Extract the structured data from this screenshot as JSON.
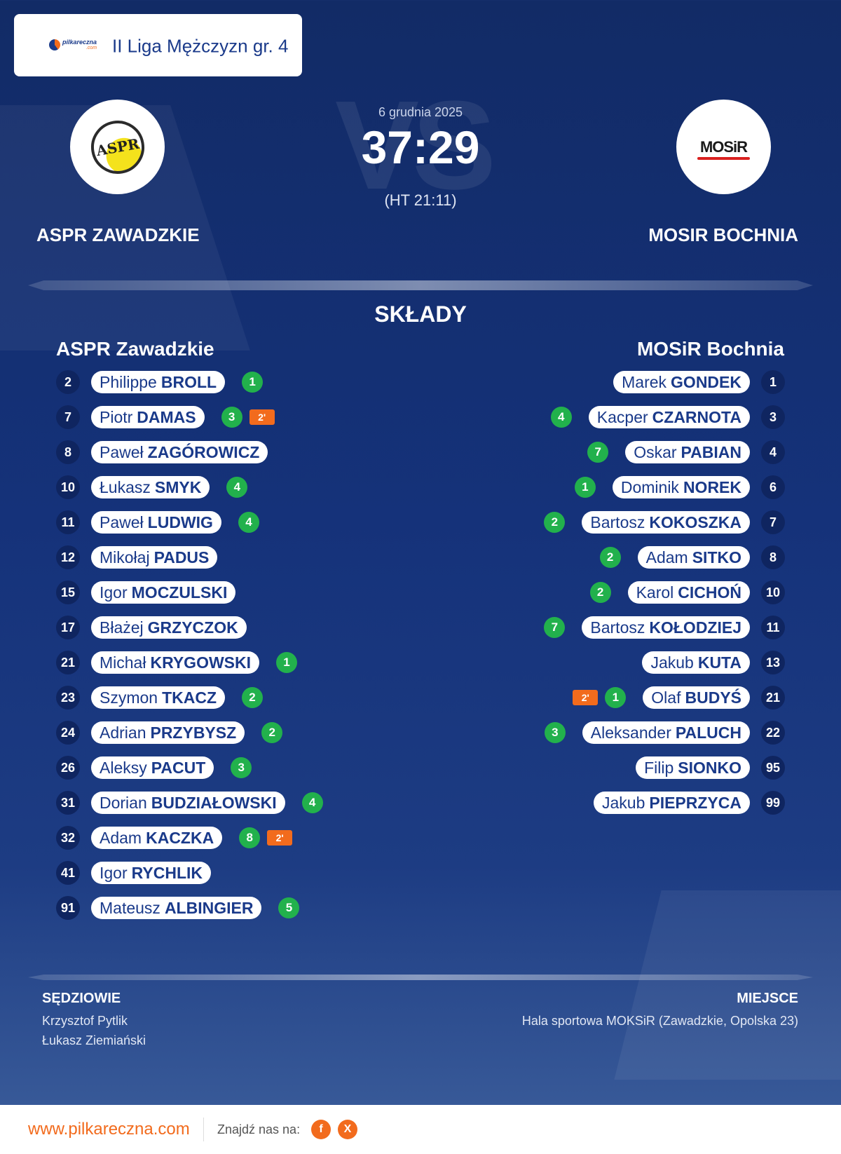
{
  "header": {
    "league_logo_text": "pilkareczna",
    "league_logo_sub": ".com",
    "league_name": "II Liga Mężczyzn gr. 4"
  },
  "match": {
    "date": "6 grudnia 2025",
    "score": "37:29",
    "halftime": "(HT 21:11)",
    "watermark": "VS"
  },
  "home_team": {
    "name": "ASPR ZAWADZKIE",
    "logo_text": "ASPR",
    "lineup_title": "ASPR Zawadzkie"
  },
  "away_team": {
    "name": "MOSIR BOCHNIA",
    "logo_text": "MOSiR",
    "lineup_title": "MOSiR Bochnia"
  },
  "section_title": "SKŁADY",
  "home_players": [
    {
      "number": "2",
      "first": "Philippe",
      "last": "BROLL",
      "goals": "1",
      "penalty": ""
    },
    {
      "number": "7",
      "first": "Piotr",
      "last": "DAMAS",
      "goals": "3",
      "penalty": "2'"
    },
    {
      "number": "8",
      "first": "Paweł",
      "last": "ZAGÓROWICZ",
      "goals": "",
      "penalty": ""
    },
    {
      "number": "10",
      "first": "Łukasz",
      "last": "SMYK",
      "goals": "4",
      "penalty": ""
    },
    {
      "number": "11",
      "first": "Paweł",
      "last": "LUDWIG",
      "goals": "4",
      "penalty": ""
    },
    {
      "number": "12",
      "first": "Mikołaj",
      "last": "PADUS",
      "goals": "",
      "penalty": ""
    },
    {
      "number": "15",
      "first": "Igor",
      "last": "MOCZULSKI",
      "goals": "",
      "penalty": ""
    },
    {
      "number": "17",
      "first": "Błażej",
      "last": "GRZYCZOK",
      "goals": "",
      "penalty": ""
    },
    {
      "number": "21",
      "first": "Michał",
      "last": "KRYGOWSKI",
      "goals": "1",
      "penalty": ""
    },
    {
      "number": "23",
      "first": "Szymon",
      "last": "TKACZ",
      "goals": "2",
      "penalty": ""
    },
    {
      "number": "24",
      "first": "Adrian",
      "last": "PRZYBYSZ",
      "goals": "2",
      "penalty": ""
    },
    {
      "number": "26",
      "first": "Aleksy",
      "last": "PACUT",
      "goals": "3",
      "penalty": ""
    },
    {
      "number": "31",
      "first": "Dorian",
      "last": "BUDZIAŁOWSKI",
      "goals": "4",
      "penalty": ""
    },
    {
      "number": "32",
      "first": "Adam",
      "last": "KACZKA",
      "goals": "8",
      "penalty": "2'"
    },
    {
      "number": "41",
      "first": "Igor",
      "last": "RYCHLIK",
      "goals": "",
      "penalty": ""
    },
    {
      "number": "91",
      "first": "Mateusz",
      "last": "ALBINGIER",
      "goals": "5",
      "penalty": ""
    }
  ],
  "away_players": [
    {
      "number": "1",
      "first": "Marek",
      "last": "GONDEK",
      "goals": "",
      "penalty": ""
    },
    {
      "number": "3",
      "first": "Kacper",
      "last": "CZARNOTA",
      "goals": "4",
      "penalty": ""
    },
    {
      "number": "4",
      "first": "Oskar",
      "last": "PABIAN",
      "goals": "7",
      "penalty": ""
    },
    {
      "number": "6",
      "first": "Dominik",
      "last": "NOREK",
      "goals": "1",
      "penalty": ""
    },
    {
      "number": "7",
      "first": "Bartosz",
      "last": "KOKOSZKA",
      "goals": "2",
      "penalty": ""
    },
    {
      "number": "8",
      "first": "Adam",
      "last": "SITKO",
      "goals": "2",
      "penalty": ""
    },
    {
      "number": "10",
      "first": "Karol",
      "last": "CICHOŃ",
      "goals": "2",
      "penalty": ""
    },
    {
      "number": "11",
      "first": "Bartosz",
      "last": "KOŁODZIEJ",
      "goals": "7",
      "penalty": ""
    },
    {
      "number": "13",
      "first": "Jakub",
      "last": "KUTA",
      "goals": "",
      "penalty": ""
    },
    {
      "number": "21",
      "first": "Olaf",
      "last": "BUDYŚ",
      "goals": "1",
      "penalty": "2'"
    },
    {
      "number": "22",
      "first": "Aleksander",
      "last": "PALUCH",
      "goals": "3",
      "penalty": ""
    },
    {
      "number": "95",
      "first": "Filip",
      "last": "SIONKO",
      "goals": "",
      "penalty": ""
    },
    {
      "number": "99",
      "first": "Jakub",
      "last": "PIEPRZYCA",
      "goals": "",
      "penalty": ""
    }
  ],
  "referees": {
    "title": "SĘDZIOWIE",
    "names": [
      "Krzysztof Pytlik",
      "Łukasz Ziemiański"
    ]
  },
  "venue": {
    "title": "MIEJSCE",
    "name": "Hala sportowa MOKSiR (Zawadzkie, Opolska 23)"
  },
  "footer": {
    "url": "www.pilkareczna.com",
    "find_us": "Znajdź nas na:",
    "facebook_label": "f",
    "x_label": "X"
  },
  "colors": {
    "accent_orange": "#f26b1d",
    "goal_green": "#22b14c",
    "navy": "#1a3a8a"
  }
}
